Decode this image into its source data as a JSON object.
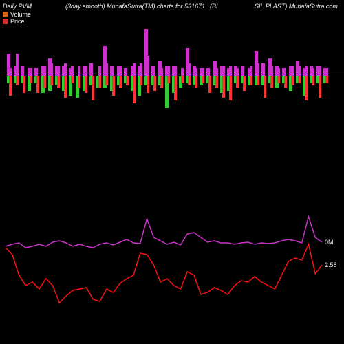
{
  "background_color": "#000000",
  "text_color": "#f0f0f0",
  "header": {
    "left": "Daily PVM",
    "middle": "(3day smooth) MunafaSutra(TM) charts for 531671",
    "right1": "(BI",
    "right2": "SIL PLAST) MunafaSutra.com"
  },
  "legend": {
    "items": [
      {
        "label": "Volume",
        "color": "#d4691e"
      },
      {
        "label": "Price",
        "color": "#cd3333"
      }
    ]
  },
  "top_chart": {
    "baseline_color": "#ffffff",
    "scale": 1.8,
    "bars": [
      {
        "pv": -6,
        "mv": 18,
        "pp": -16,
        "mp": 6
      },
      {
        "pv": 8,
        "mv": -6,
        "pp": 18,
        "mp": -8
      },
      {
        "pv": -6,
        "mv": 8,
        "pp": -14,
        "mp": 0
      },
      {
        "pv": -12,
        "mv": 6,
        "pp": 6,
        "mp": -6
      },
      {
        "pv": -6,
        "mv": 6,
        "pp": -14,
        "mp": 0
      },
      {
        "pv": -14,
        "mv": 8,
        "pp": 8,
        "mp": -10
      },
      {
        "pv": 14,
        "mv": -12,
        "pp": 10,
        "mp": -8
      },
      {
        "pv": 8,
        "mv": -8,
        "pp": -10,
        "mp": 8
      },
      {
        "pv": -12,
        "mv": 8,
        "pp": -18,
        "mp": 10
      },
      {
        "pv": -16,
        "mv": 6,
        "pp": 8,
        "mp": -6
      },
      {
        "pv": -18,
        "mv": 0,
        "pp": -10,
        "mp": 8
      },
      {
        "pv": 8,
        "mv": -12,
        "pp": -14,
        "mp": 8
      },
      {
        "pv": -8,
        "mv": 10,
        "pp": -20,
        "mp": 0
      },
      {
        "pv": -10,
        "mv": 0,
        "pp": 8,
        "mp": -10
      },
      {
        "pv": 24,
        "mv": -10,
        "pp": 10,
        "mp": -8
      },
      {
        "pv": -12,
        "mv": 8,
        "pp": -16,
        "mp": 0
      },
      {
        "pv": 8,
        "mv": -8,
        "pp": -10,
        "mp": 8
      },
      {
        "pv": -6,
        "mv": 6,
        "pp": -8,
        "mp": 0
      },
      {
        "pv": -12,
        "mv": 8,
        "pp": -22,
        "mp": 10
      },
      {
        "pv": -16,
        "mv": 8,
        "pp": 10,
        "mp": -8
      },
      {
        "pv": 38,
        "mv": -8,
        "pp": 16,
        "mp": -14
      },
      {
        "pv": -8,
        "mv": 8,
        "pp": -12,
        "mp": 0
      },
      {
        "pv": 12,
        "mv": -8,
        "pp": -10,
        "mp": 6
      },
      {
        "pv": 8,
        "mv": -26,
        "pp": 8,
        "mp": -6
      },
      {
        "pv": -14,
        "mv": 8,
        "pp": -20,
        "mp": 8
      },
      {
        "pv": -10,
        "mv": 0,
        "pp": 6,
        "mp": -6
      },
      {
        "pv": 22,
        "mv": -6,
        "pp": 10,
        "mp": -8
      },
      {
        "pv": 8,
        "mv": -8,
        "pp": -10,
        "mp": 6
      },
      {
        "pv": -8,
        "mv": 6,
        "pp": 6,
        "mp": -6
      },
      {
        "pv": -6,
        "mv": 6,
        "pp": -14,
        "mp": 0
      },
      {
        "pv": 12,
        "mv": -8,
        "pp": -10,
        "mp": 6
      },
      {
        "pv": -14,
        "mv": 8,
        "pp": -18,
        "mp": 8
      },
      {
        "pv": -12,
        "mv": 6,
        "pp": -20,
        "mp": 8
      },
      {
        "pv": 8,
        "mv": -6,
        "pp": -10,
        "mp": 6
      },
      {
        "pv": -6,
        "mv": 8,
        "pp": -12,
        "mp": 0
      },
      {
        "pv": -8,
        "mv": 6,
        "pp": 8,
        "mp": -8
      },
      {
        "pv": 20,
        "mv": -8,
        "pp": 10,
        "mp": -8
      },
      {
        "pv": -8,
        "mv": 10,
        "pp": -18,
        "mp": 0
      },
      {
        "pv": 14,
        "mv": -6,
        "pp": -10,
        "mp": 8
      },
      {
        "pv": 8,
        "mv": -10,
        "pp": 6,
        "mp": -6
      },
      {
        "pv": -6,
        "mv": 6,
        "pp": -10,
        "mp": 0
      },
      {
        "pv": -12,
        "mv": 8,
        "pp": 8,
        "mp": -8
      },
      {
        "pv": 12,
        "mv": -6,
        "pp": 8,
        "mp": -6
      },
      {
        "pv": -16,
        "mv": 6,
        "pp": -20,
        "mp": 8
      },
      {
        "pv": 8,
        "mv": -6,
        "pp": -8,
        "mp": 6
      },
      {
        "pv": -6,
        "mv": 8,
        "pp": -18,
        "mp": 8
      },
      {
        "pv": -6,
        "mv": 6,
        "pp": 6,
        "mp": -6
      }
    ],
    "colors": {
      "pos_vol": "#cc33cc",
      "neg_vol": "#33cc33",
      "pos_price": "#cc33cc",
      "neg_price": "#ff3333"
    }
  },
  "bottom_chart": {
    "volume": {
      "color": "#cc33cc",
      "width": 1.5,
      "end_label": "0M",
      "points": [
        78,
        75,
        73,
        80,
        78,
        75,
        78,
        72,
        70,
        73,
        78,
        75,
        78,
        80,
        75,
        73,
        76,
        72,
        68,
        73,
        74,
        38,
        65,
        70,
        75,
        72,
        76,
        60,
        58,
        65,
        72,
        70,
        73,
        73,
        75,
        73,
        72,
        75,
        73,
        74,
        73,
        70,
        68,
        70,
        73,
        35,
        65,
        72
      ]
    },
    "price": {
      "color": "#ff1111",
      "width": 1.5,
      "end_label": "2.58",
      "points": [
        80,
        90,
        120,
        135,
        130,
        140,
        125,
        135,
        160,
        150,
        142,
        140,
        138,
        155,
        158,
        140,
        145,
        132,
        125,
        120,
        88,
        90,
        105,
        130,
        125,
        135,
        140,
        115,
        120,
        148,
        145,
        138,
        142,
        148,
        135,
        128,
        130,
        122,
        130,
        135,
        140,
        120,
        100,
        95,
        98,
        75,
        118,
        105
      ]
    }
  }
}
